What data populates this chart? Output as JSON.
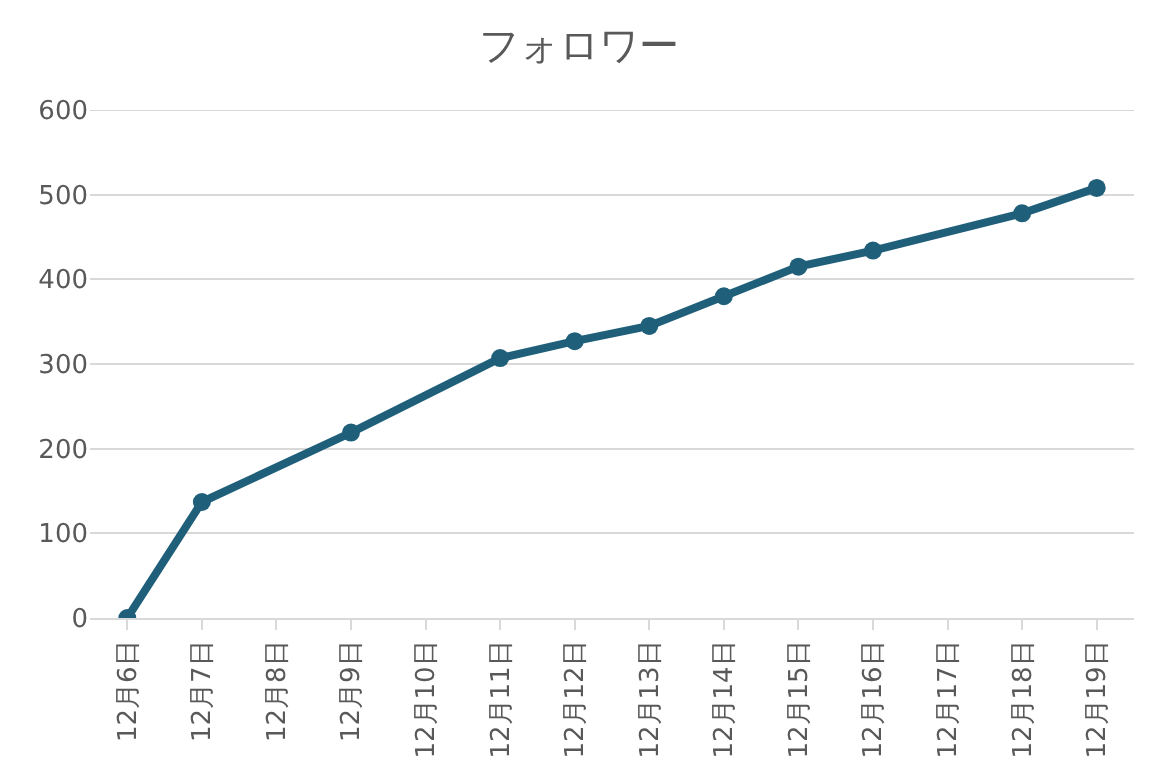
{
  "chart_data": {
    "type": "line",
    "title": "フォロワー",
    "categories": [
      "12月6日",
      "12月7日",
      "12月8日",
      "12月9日",
      "12月10日",
      "12月11日",
      "12月12日",
      "12月13日",
      "12月14日",
      "12月15日",
      "12月16日",
      "12月17日",
      "12月18日",
      "12月19日"
    ],
    "series": [
      {
        "color": "#1f5f7a",
        "values": [
          0,
          137,
          null,
          219,
          null,
          307,
          327,
          345,
          380,
          415,
          434,
          null,
          478,
          508
        ]
      }
    ],
    "ylim": [
      0,
      600
    ],
    "yticks": [
      0,
      100,
      200,
      300,
      400,
      500,
      600
    ],
    "grid": "y",
    "marker": "circle"
  }
}
